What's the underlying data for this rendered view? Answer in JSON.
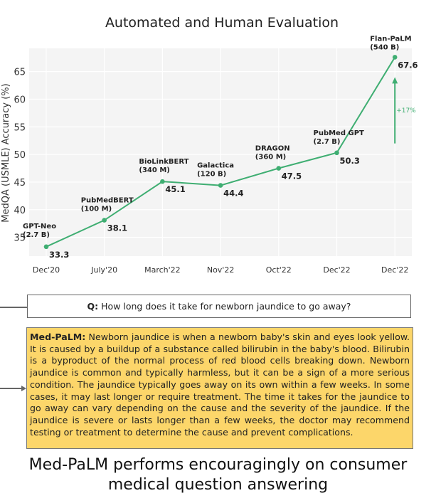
{
  "chart_data": {
    "type": "line",
    "title": "Automated and Human Evaluation",
    "xlabel": "",
    "ylabel": "MedQA (USMLE) Accuracy (%)",
    "ylim": [
      31.6,
      69.2
    ],
    "yticks": [
      35,
      40,
      45,
      50,
      55,
      60,
      65
    ],
    "grid": true,
    "categories": [
      "Dec'20",
      "July'20",
      "March'22",
      "Nov'22",
      "Oct'22",
      "Dec'22",
      "Dec'22"
    ],
    "series": [
      {
        "name": "MedQA accuracy",
        "color": "#3fae72",
        "values": [
          33.3,
          38.1,
          45.1,
          44.4,
          47.5,
          50.3,
          67.6
        ],
        "value_labels": [
          "33.3",
          "38.1",
          "45.1",
          "44.4",
          "47.5",
          "50.3",
          "67.6"
        ],
        "model_names": [
          "GPT-Neo",
          "PubMedBERT",
          "BioLinkBERT",
          "Galactica",
          "DRAGON",
          "PubMed GPT",
          "Flan-PaLM"
        ],
        "model_sizes": [
          "(2.7 B)",
          "(100 M)",
          "(340 M)",
          "(120 B)",
          "(360 M)",
          "(2.7 B)",
          "(540 B)"
        ]
      }
    ],
    "annotations": [
      {
        "text": "+17%",
        "type": "arrow",
        "from": 52,
        "to": 64
      }
    ]
  },
  "question": {
    "prefix": "Q:",
    "text": " How long does it take for newborn jaundice to go away?"
  },
  "answer": {
    "prefix": "Med-PaLM:",
    "text": " Newborn jaundice is when a newborn baby's skin and eyes look yellow. It is caused by a buildup of a substance called bilirubin in the baby's blood. Bilirubin is a byproduct of the normal process of red blood cells breaking down. Newborn jaundice is common and typically harmless, but it can be a sign of a more serious condition. The jaundice typically goes away on its own within a few weeks. In some cases, it may last longer or require treatment. The time it takes for the jaundice to go away can vary depending on the cause and the severity of the jaundice. If the jaundice is severe or lasts longer than a few weeks, the doctor may recommend testing or treatment to determine the cause and prevent complications."
  },
  "caption": {
    "line1": "Med-PaLM performs encouragingly on consumer",
    "line2": "medical question answering"
  }
}
